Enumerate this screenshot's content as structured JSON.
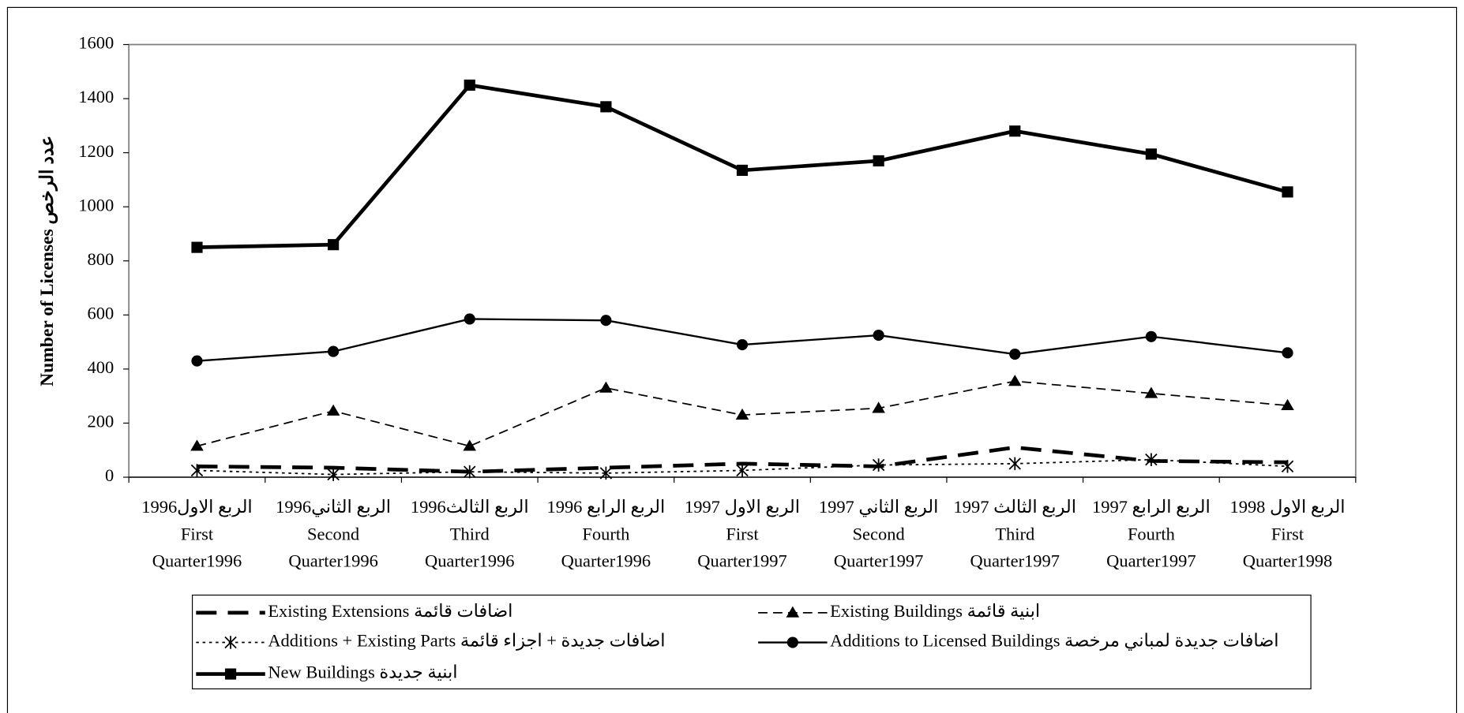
{
  "chart_data": {
    "type": "line",
    "y_label": "Number of Licenses  عدد الرخص",
    "categories": [
      [
        "الربع الاول1996",
        "First",
        "Quarter1996"
      ],
      [
        "الربع الثاني1996",
        "Second",
        "Quarter1996"
      ],
      [
        "الربع الثالث1996",
        "Third",
        "Quarter1996"
      ],
      [
        "الربع الرابع 1996",
        "Fourth",
        "Quarter1996"
      ],
      [
        "الربع الاول 1997",
        "First",
        "Quarter1997"
      ],
      [
        "الربع الثاني 1997",
        "Second",
        "Quarter1997"
      ],
      [
        "الربع الثالث 1997",
        "Third",
        "Quarter1997"
      ],
      [
        "الربع الرابع 1997",
        "Fourth",
        "Quarter1997"
      ],
      [
        "الربع الاول 1998",
        "First",
        "Quarter1998"
      ]
    ],
    "series": [
      {
        "name": "Existing Extensions اضافات قائمة",
        "color": "#000000",
        "line_style": "long-dash",
        "marker": "none",
        "values": [
          40,
          35,
          20,
          35,
          50,
          40,
          110,
          60,
          55
        ]
      },
      {
        "name": "Existing Buildings ابنية قائمة",
        "color": "#000000",
        "line_style": "dashed",
        "marker": "triangle",
        "values": [
          115,
          245,
          115,
          330,
          230,
          255,
          355,
          310,
          265
        ]
      },
      {
        "name": "Additions + Existing  Parts اضافات جديدة + اجزاء قائمة",
        "color": "#000000",
        "line_style": "dotted",
        "marker": "asterisk",
        "values": [
          25,
          10,
          20,
          15,
          25,
          45,
          50,
          65,
          40
        ]
      },
      {
        "name": "Additions to Licensed Buildings اضافات جديدة لمباني مرخصة",
        "color": "#000000",
        "line_style": "solid",
        "marker": "circle",
        "values": [
          430,
          465,
          585,
          580,
          490,
          525,
          455,
          520,
          460
        ]
      },
      {
        "name": "New  Buildings ابنية  جديدة",
        "color": "#000000",
        "line_style": "thick",
        "marker": "square",
        "values": [
          850,
          860,
          1450,
          1370,
          1135,
          1170,
          1280,
          1195,
          1055
        ]
      }
    ],
    "ylim": [
      0,
      1600
    ],
    "yticks": [
      0,
      200,
      400,
      600,
      800,
      1000,
      1200,
      1400,
      1600
    ],
    "grid": false
  }
}
